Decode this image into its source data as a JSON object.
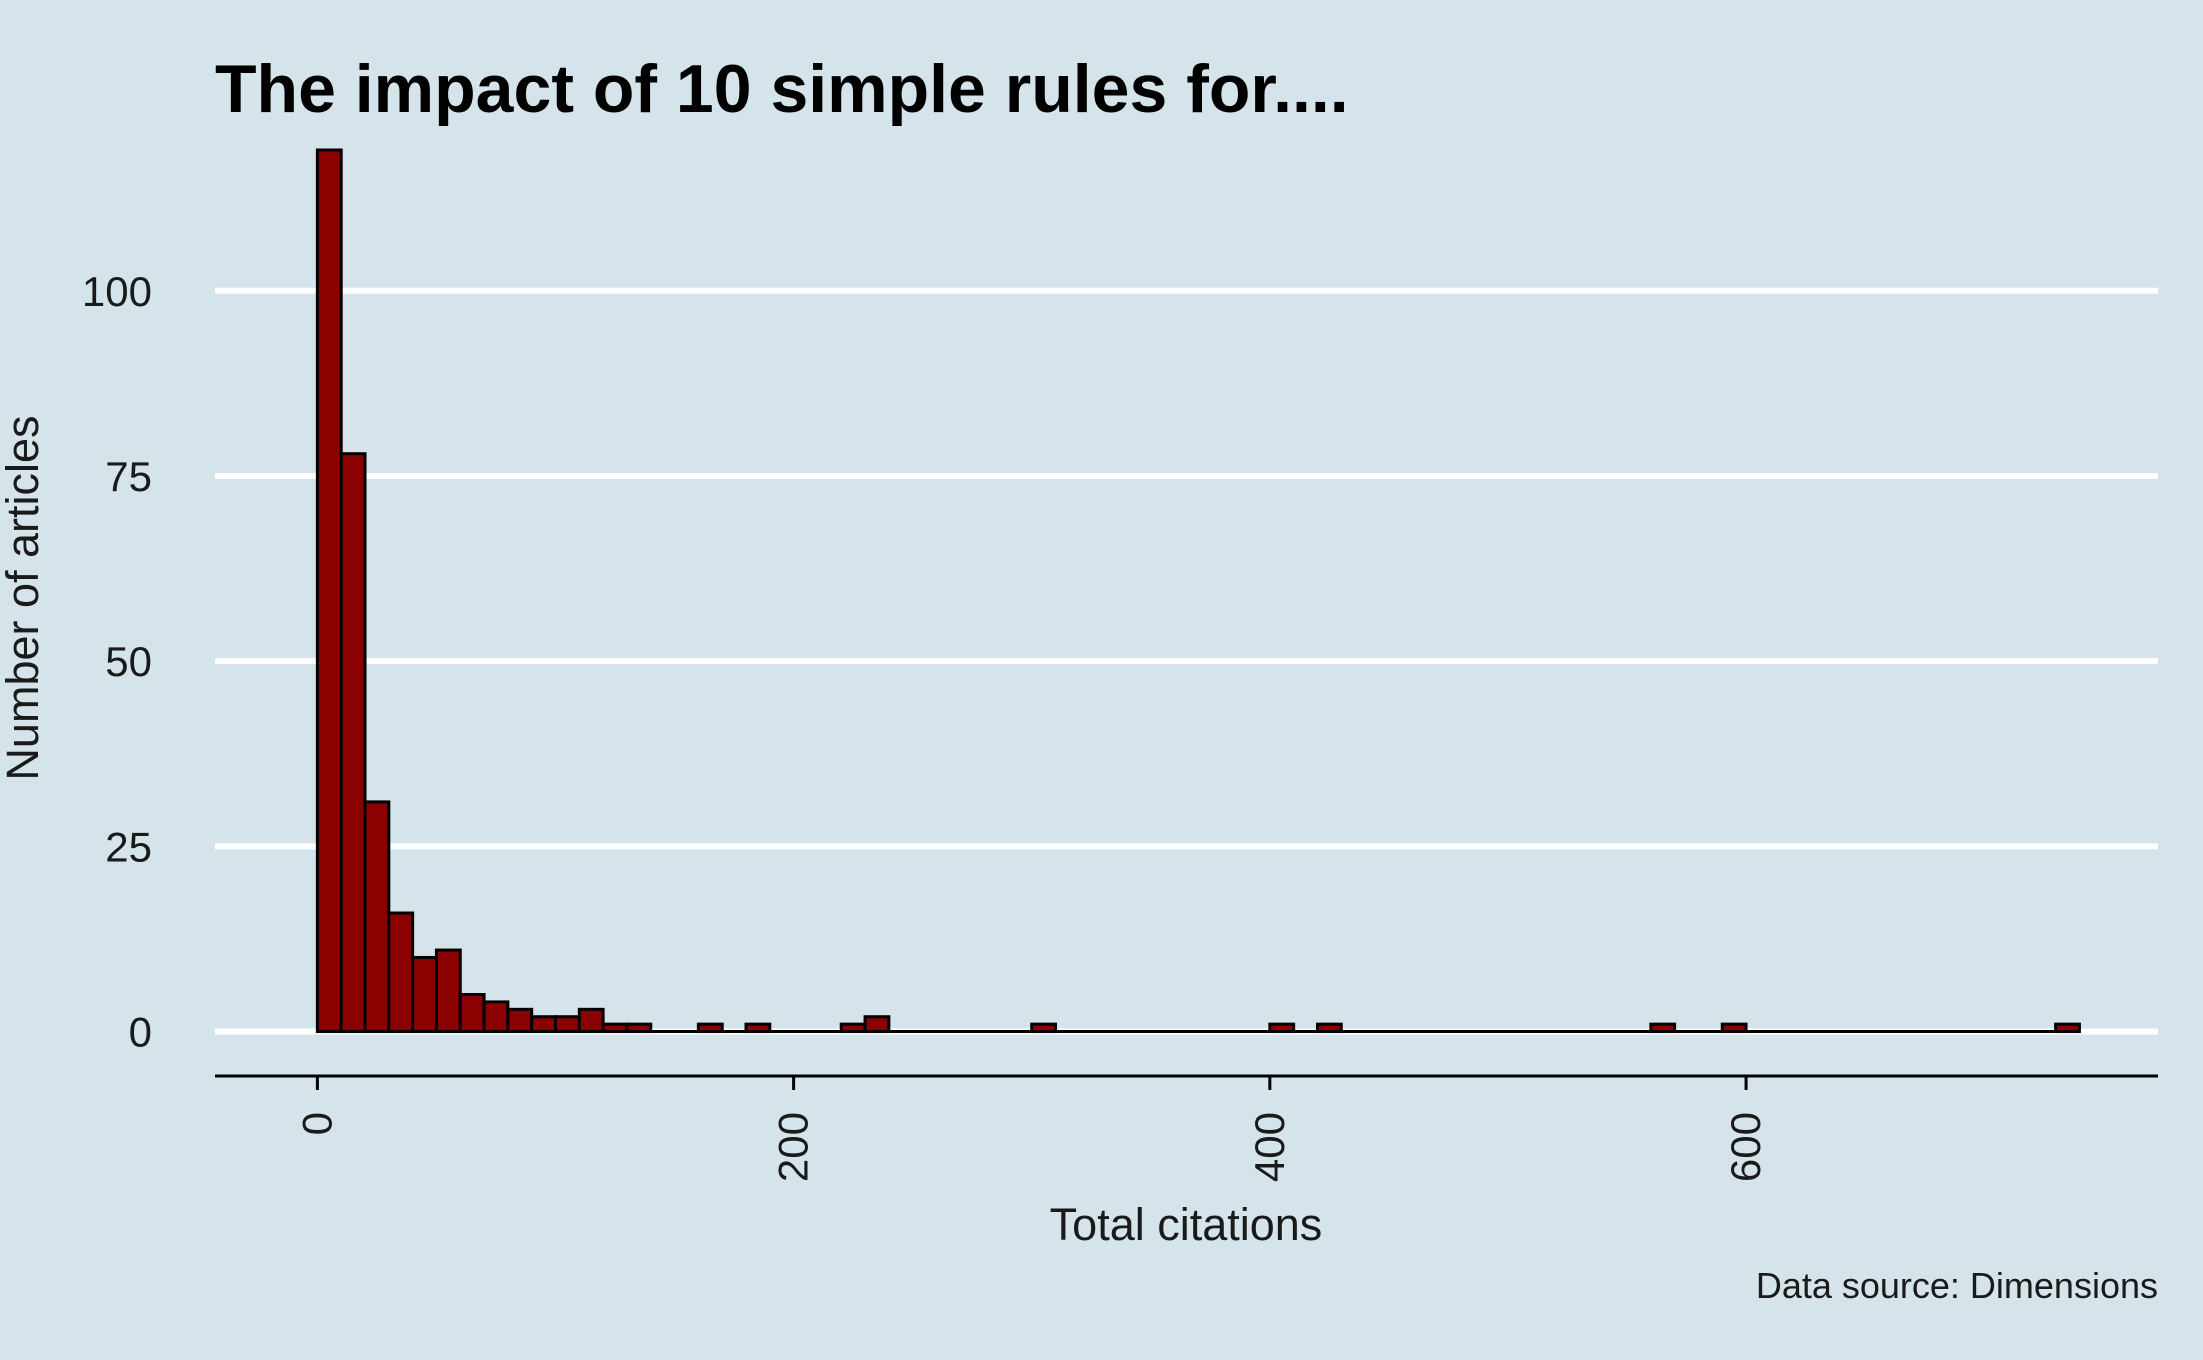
{
  "chart_data": {
    "type": "bar",
    "title": "The impact of 10 simple rules for....",
    "xlabel": "Total citations",
    "ylabel": "Number of articles",
    "caption": "Data source: Dimensions",
    "xlim": [
      -43,
      773
    ],
    "ylim": [
      -6,
      119
    ],
    "xticks": [
      0,
      200,
      400,
      600
    ],
    "yticks": [
      0,
      25,
      50,
      75,
      100
    ],
    "bin_width": 10,
    "bins": [
      {
        "x": 0,
        "count": 119
      },
      {
        "x": 10,
        "count": 78
      },
      {
        "x": 20,
        "count": 31
      },
      {
        "x": 30,
        "count": 16
      },
      {
        "x": 40,
        "count": 10
      },
      {
        "x": 50,
        "count": 11
      },
      {
        "x": 60,
        "count": 5
      },
      {
        "x": 70,
        "count": 4
      },
      {
        "x": 80,
        "count": 3
      },
      {
        "x": 90,
        "count": 2
      },
      {
        "x": 100,
        "count": 2
      },
      {
        "x": 110,
        "count": 3
      },
      {
        "x": 120,
        "count": 1
      },
      {
        "x": 130,
        "count": 1
      },
      {
        "x": 140,
        "count": 0
      },
      {
        "x": 150,
        "count": 0
      },
      {
        "x": 160,
        "count": 1
      },
      {
        "x": 170,
        "count": 0
      },
      {
        "x": 180,
        "count": 1
      },
      {
        "x": 190,
        "count": 0
      },
      {
        "x": 200,
        "count": 0
      },
      {
        "x": 210,
        "count": 0
      },
      {
        "x": 220,
        "count": 1
      },
      {
        "x": 230,
        "count": 2
      },
      {
        "x": 300,
        "count": 1
      },
      {
        "x": 400,
        "count": 1
      },
      {
        "x": 420,
        "count": 1
      },
      {
        "x": 560,
        "count": 1
      },
      {
        "x": 590,
        "count": 1
      },
      {
        "x": 730,
        "count": 1
      }
    ],
    "grid": "horizontal",
    "colors": {
      "background": "#d5e4eb",
      "bar_fill": "#8b0000",
      "bar_edge": "#000000",
      "gridline": "#ffffff"
    }
  }
}
